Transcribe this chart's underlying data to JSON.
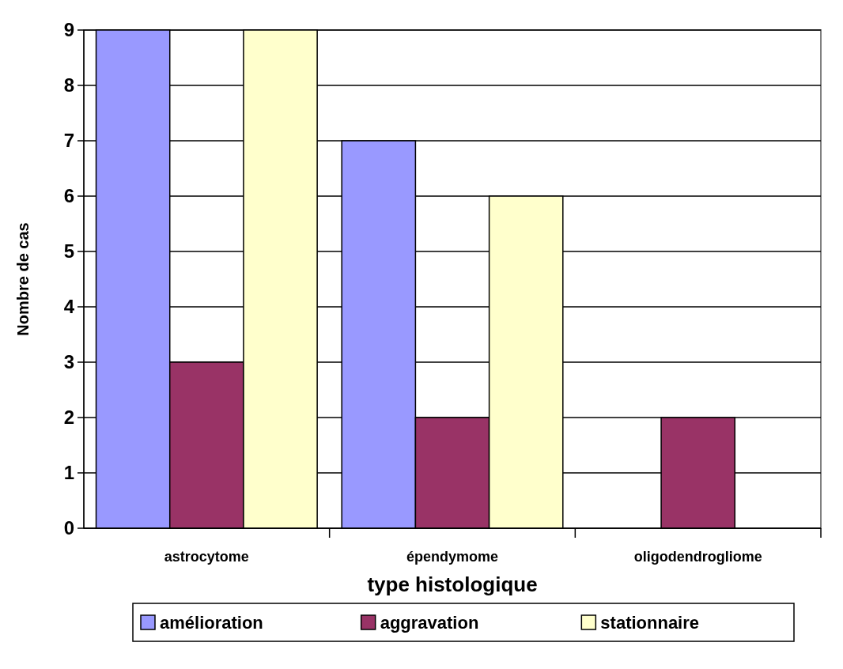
{
  "chart_data": {
    "type": "bar",
    "xlabel": "type histologique",
    "ylabel": "Nombre de cas",
    "categories": [
      "astrocytome",
      "épendymome",
      "oligodendrogliome"
    ],
    "series": [
      {
        "name": "amélioration",
        "color": "#9999ff",
        "values": [
          9,
          7,
          0
        ]
      },
      {
        "name": "aggravation",
        "color": "#993366",
        "values": [
          3,
          2,
          2
        ]
      },
      {
        "name": "stationnaire",
        "color": "#ffffcc",
        "values": [
          9,
          6,
          0
        ]
      }
    ],
    "ylim": [
      0,
      9
    ],
    "yticks": [
      0,
      1,
      2,
      3,
      4,
      5,
      6,
      7,
      8,
      9
    ],
    "grid": "y",
    "legend": "bottom"
  }
}
